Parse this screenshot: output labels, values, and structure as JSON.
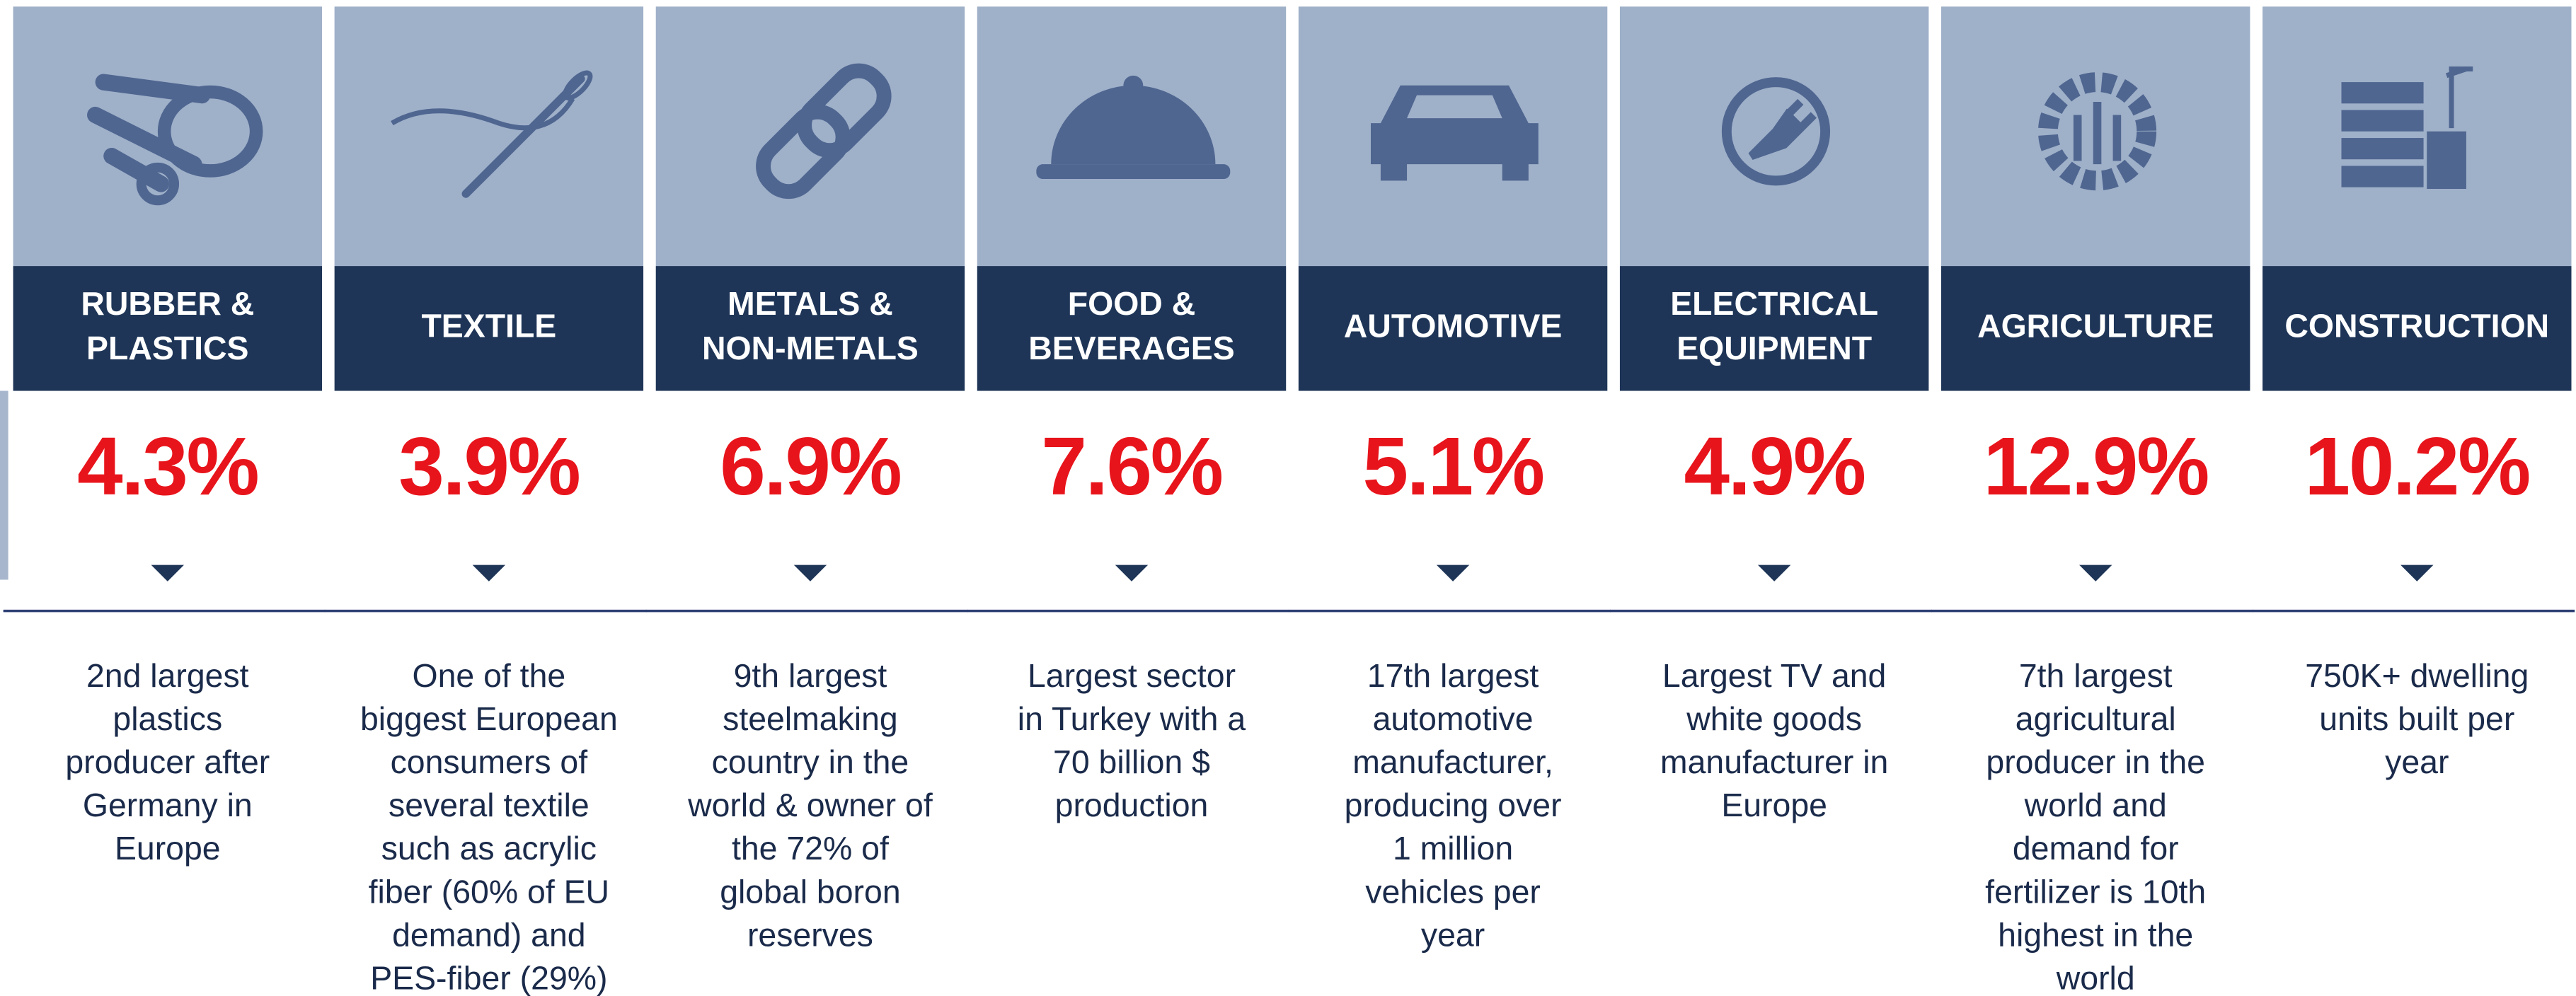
{
  "sectors": [
    {
      "name": [
        "RUBBER &",
        "PLASTICS"
      ],
      "value": "4.3%",
      "description": [
        "2nd largest",
        "plastics",
        "producer after",
        "Germany in",
        "Europe"
      ]
    },
    {
      "name": [
        "TEXTILE"
      ],
      "value": "3.9%",
      "description": [
        "One of the",
        "biggest European",
        "consumers of",
        "several textile",
        "such as acrylic",
        "fiber (60% of EU",
        "demand) and",
        "PES-fiber (29%)"
      ]
    },
    {
      "name": [
        "METALS &",
        "NON-METALS"
      ],
      "value": "6.9%",
      "description": [
        "9th largest",
        "steelmaking",
        "country in the",
        "world & owner of",
        "the 72% of",
        "global boron",
        "reserves"
      ]
    },
    {
      "name": [
        "FOOD &",
        "BEVERAGES"
      ],
      "value": "7.6%",
      "description": [
        "Largest sector",
        "in Turkey with a",
        "70 billion $",
        "production"
      ]
    },
    {
      "name": [
        "AUTOMOTIVE"
      ],
      "value": "5.1%",
      "description": [
        "17th largest",
        "automotive",
        "manufacturer,",
        "producing over",
        "1 million",
        "vehicles per",
        "year"
      ]
    },
    {
      "name": [
        "ELECTRICAL",
        "EQUIPMENT"
      ],
      "value": "4.9%",
      "description": [
        "Largest TV and",
        "white goods",
        "manufacturer in",
        "Europe"
      ]
    },
    {
      "name": [
        "AGRICULTURE"
      ],
      "value": "12.9%",
      "description": [
        "7th largest",
        "agricultural",
        "producer in the",
        "world and",
        "demand for",
        "fertilizer is 10th",
        "highest in the",
        "world"
      ]
    },
    {
      "name": [
        "CONSTRUCTION"
      ],
      "value": "10.2%",
      "description": [
        "750K+ dwelling",
        "units built per",
        "year"
      ]
    }
  ]
}
